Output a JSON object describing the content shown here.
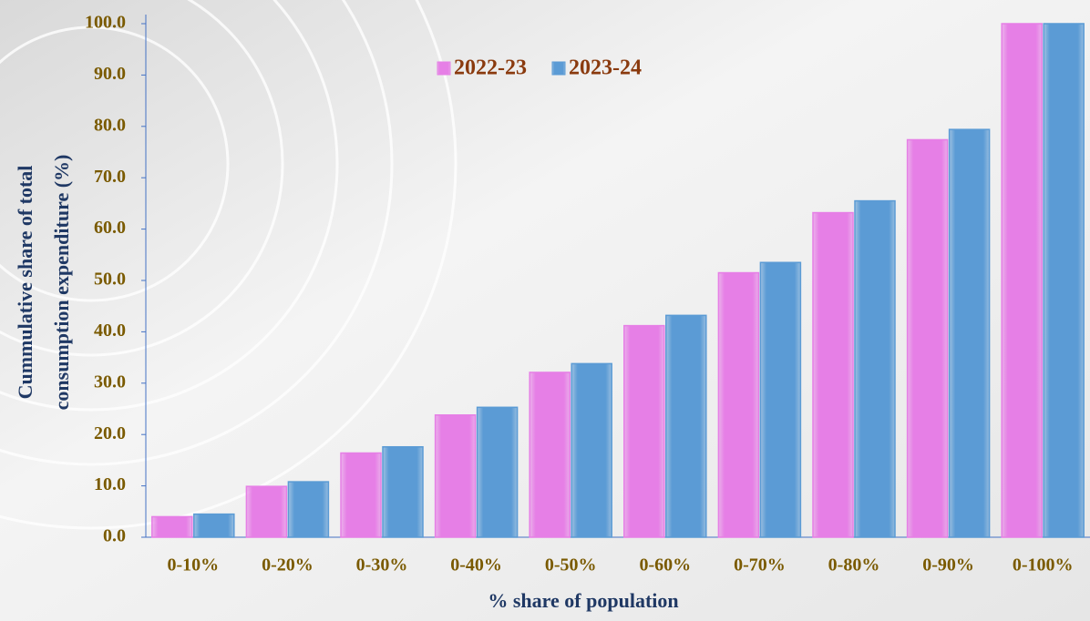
{
  "chart_data": {
    "type": "bar",
    "categories": [
      "0-10%",
      "0-20%",
      "0-30%",
      "0-40%",
      "0-50%",
      "0-60%",
      "0-70%",
      "0-80%",
      "0-90%",
      "0-100%"
    ],
    "series": [
      {
        "name": "2022-23",
        "color": "#e67fe6",
        "values": [
          4.0,
          9.9,
          16.4,
          23.8,
          32.1,
          41.2,
          51.5,
          63.2,
          77.4,
          100
        ]
      },
      {
        "name": "2023-24",
        "color": "#5b9bd5",
        "values": [
          4.5,
          10.8,
          17.6,
          25.3,
          33.8,
          43.2,
          53.5,
          65.5,
          79.4,
          100
        ]
      }
    ],
    "x_label": "% share of population",
    "y_label": [
      "Cummulative share of total",
      "consumption expenditure (%)"
    ],
    "ylim": [
      0,
      100
    ],
    "yticks": [
      {
        "value": 0,
        "label": "0.0"
      },
      {
        "value": 10,
        "label": "10.0"
      },
      {
        "value": 20,
        "label": "20.0"
      },
      {
        "value": 30,
        "label": "30.0"
      },
      {
        "value": 40,
        "label": "40.0"
      },
      {
        "value": 50,
        "label": "50.0"
      },
      {
        "value": 60,
        "label": "60.0"
      },
      {
        "value": 70,
        "label": "70.0"
      },
      {
        "value": 80,
        "label": "80.0"
      },
      {
        "value": 90,
        "label": "90.0"
      },
      {
        "value": 100,
        "label": "100.0"
      }
    ],
    "legend": "top"
  }
}
